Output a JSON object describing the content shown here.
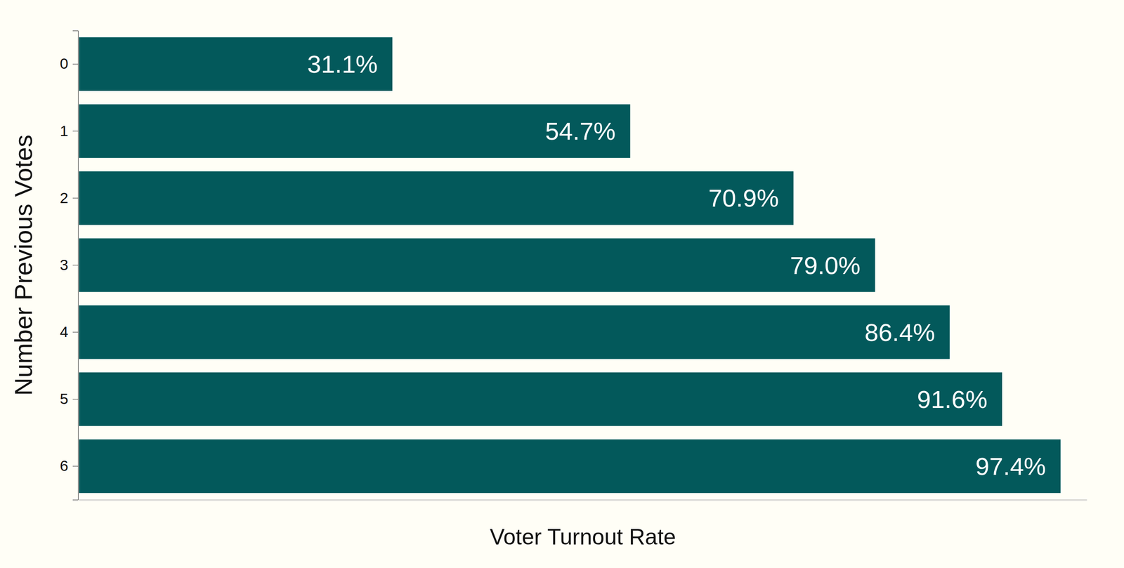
{
  "chart_data": {
    "type": "bar",
    "orientation": "horizontal",
    "x_label": "Voter Turnout Rate",
    "y_label": "Number Previous Votes",
    "categories": [
      "0",
      "1",
      "2",
      "3",
      "4",
      "5",
      "6"
    ],
    "values": [
      31.1,
      54.7,
      70.9,
      79.0,
      86.4,
      91.6,
      97.4
    ],
    "value_labels": [
      "31.1%",
      "54.7%",
      "70.9%",
      "79.0%",
      "86.4%",
      "91.6%",
      "97.4%"
    ],
    "color": "#03595b",
    "xlim": [
      0,
      100
    ],
    "grid": false,
    "data_labels": true,
    "tick_labels": "y"
  }
}
